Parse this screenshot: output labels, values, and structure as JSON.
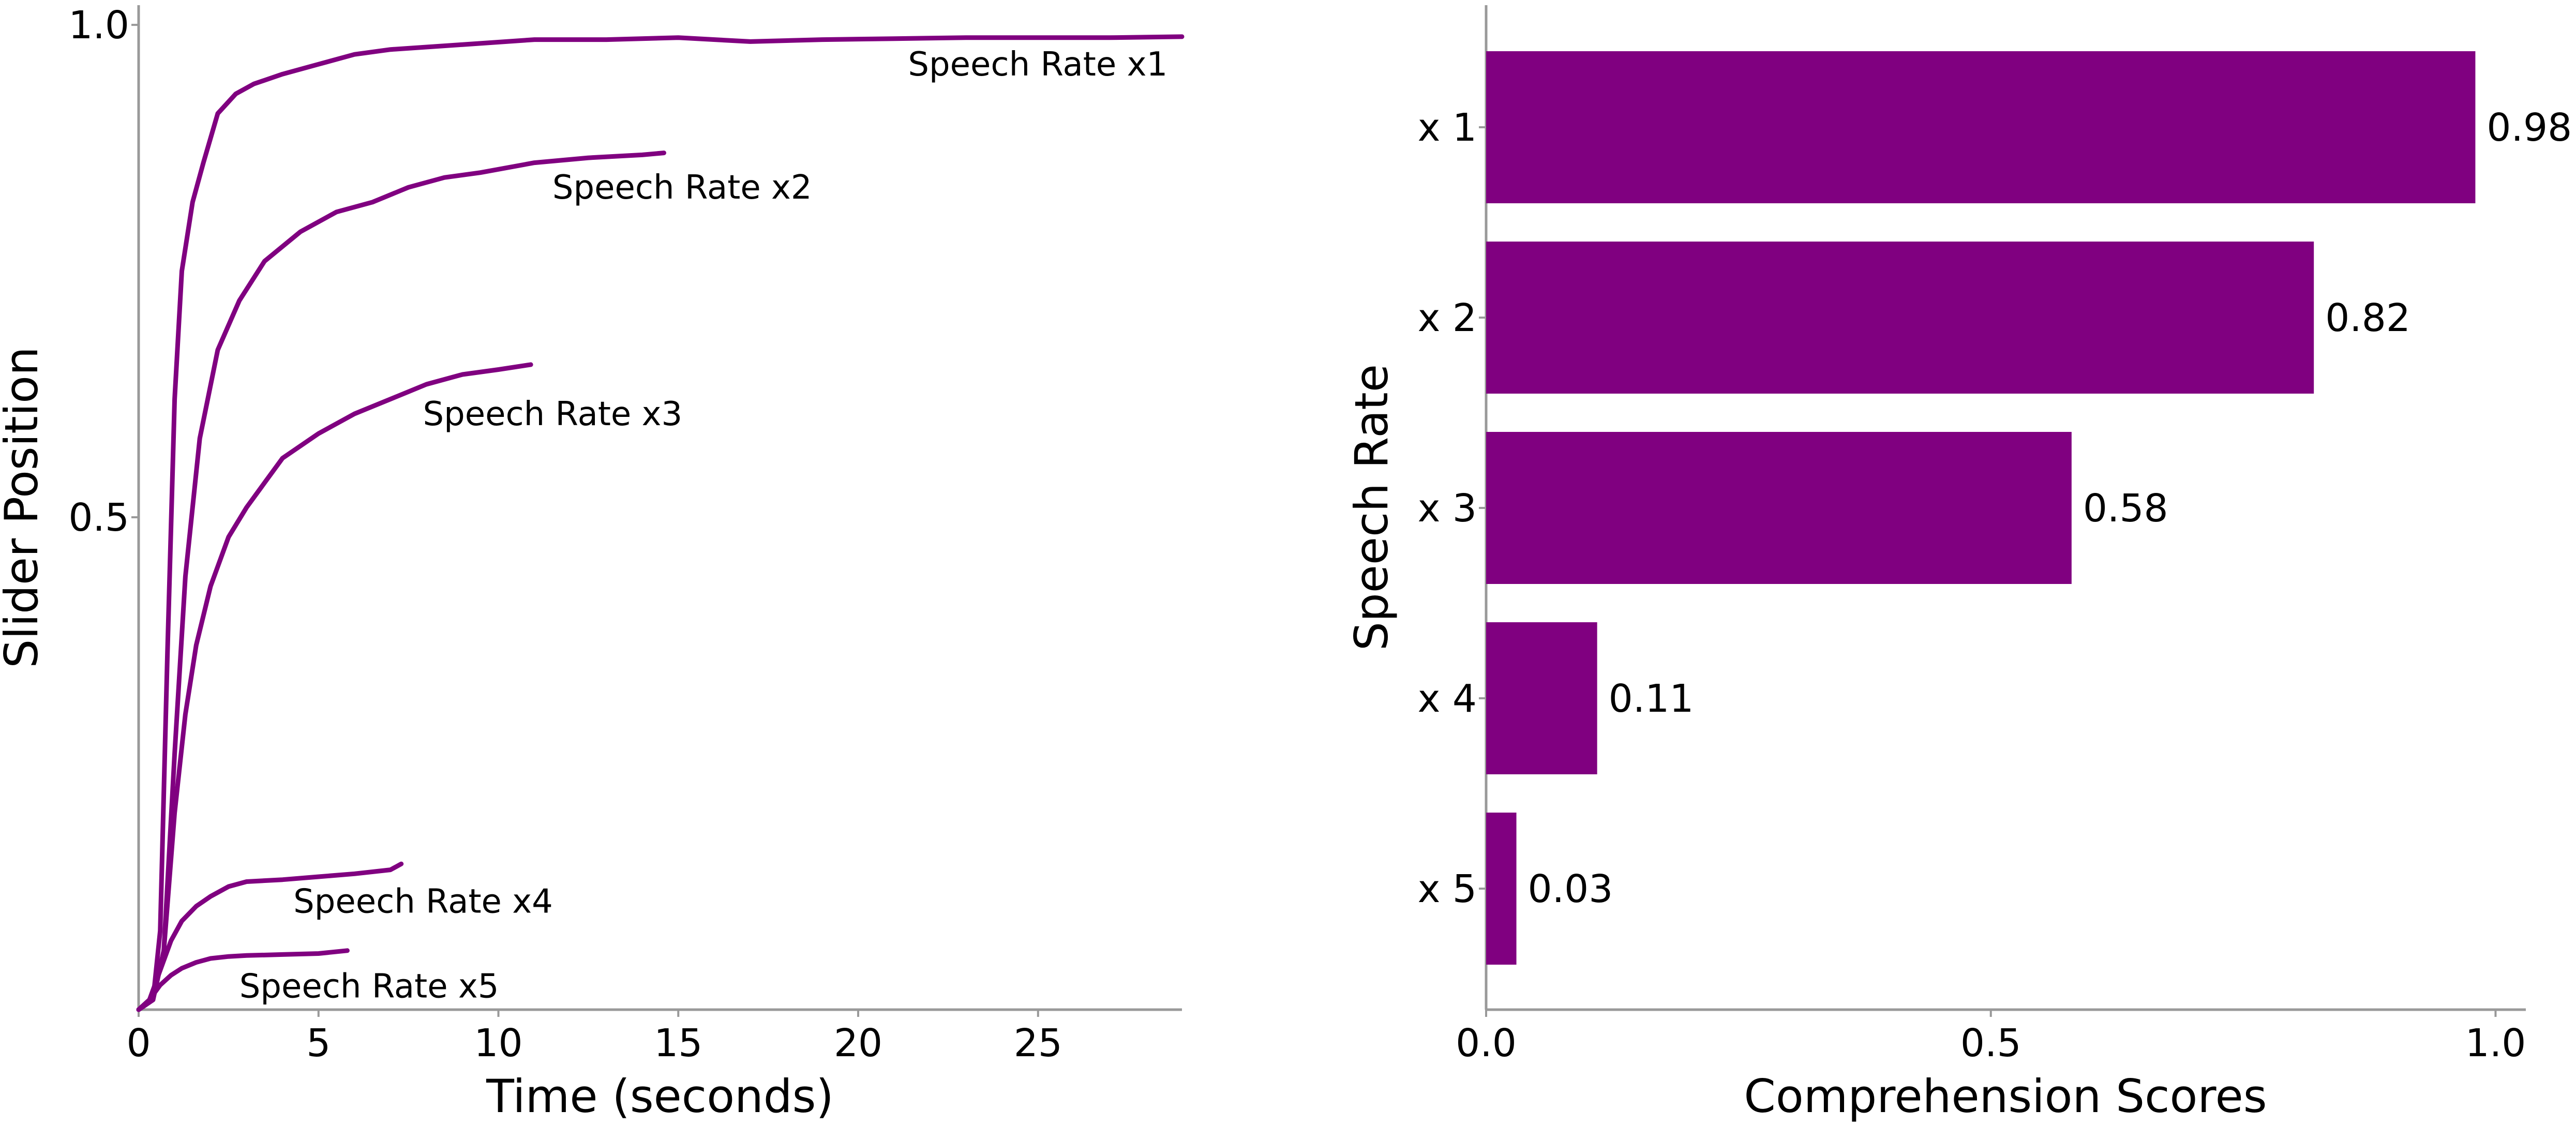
{
  "colors": {
    "series": "#800080",
    "axis": "#999999",
    "text": "#000000"
  },
  "chart_data": [
    {
      "type": "line",
      "title": "",
      "xlabel": "Time (seconds)",
      "ylabel": "Slider Position",
      "xlim": [
        0,
        29
      ],
      "ylim": [
        0,
        1.02
      ],
      "xticks": [
        0,
        5,
        10,
        15,
        20,
        25
      ],
      "xtick_labels": [
        "0",
        "5",
        "10",
        "15",
        "20",
        "25"
      ],
      "yticks": [
        0.5,
        1.0
      ],
      "ytick_labels": [
        "0.5",
        "1.0"
      ],
      "grid": false,
      "series": [
        {
          "name": "Speech Rate x1",
          "x": [
            0,
            0.4,
            0.6,
            0.8,
            1.0,
            1.2,
            1.5,
            1.8,
            2.2,
            2.7,
            3.2,
            4,
            5,
            6,
            7,
            9,
            11,
            13,
            15,
            17,
            19,
            21,
            23,
            25,
            27,
            29
          ],
          "y": [
            0,
            0.01,
            0.08,
            0.36,
            0.62,
            0.75,
            0.82,
            0.86,
            0.91,
            0.93,
            0.94,
            0.95,
            0.96,
            0.97,
            0.975,
            0.98,
            0.985,
            0.985,
            0.987,
            0.983,
            0.985,
            0.986,
            0.987,
            0.987,
            0.987,
            0.988
          ]
        },
        {
          "name": "Speech Rate x2",
          "x": [
            0,
            0.4,
            0.7,
            1.0,
            1.3,
            1.7,
            2.2,
            2.8,
            3.5,
            4.5,
            5.5,
            6.5,
            7.5,
            8.5,
            9.5,
            11,
            12.5,
            14,
            14.6
          ],
          "y": [
            0,
            0.01,
            0.06,
            0.26,
            0.44,
            0.58,
            0.67,
            0.72,
            0.76,
            0.79,
            0.81,
            0.82,
            0.835,
            0.845,
            0.85,
            0.86,
            0.865,
            0.868,
            0.87
          ]
        },
        {
          "name": "Speech Rate x3",
          "x": [
            0,
            0.4,
            0.7,
            1.0,
            1.3,
            1.6,
            2.0,
            2.5,
            3.0,
            3.5,
            4.0,
            5.0,
            6.0,
            7.0,
            8.0,
            9.0,
            10.0,
            10.9
          ],
          "y": [
            0,
            0.01,
            0.06,
            0.2,
            0.3,
            0.37,
            0.43,
            0.48,
            0.51,
            0.535,
            0.56,
            0.585,
            0.605,
            0.62,
            0.635,
            0.645,
            0.65,
            0.655
          ]
        },
        {
          "name": "Speech Rate x4",
          "x": [
            0,
            0.3,
            0.6,
            0.9,
            1.2,
            1.6,
            2.0,
            2.5,
            3.0,
            4.0,
            5.0,
            6.0,
            7.0,
            7.3
          ],
          "y": [
            0,
            0.01,
            0.04,
            0.07,
            0.09,
            0.105,
            0.115,
            0.125,
            0.13,
            0.132,
            0.135,
            0.138,
            0.142,
            0.148
          ]
        },
        {
          "name": "Speech Rate x5",
          "x": [
            0,
            0.3,
            0.6,
            0.9,
            1.2,
            1.6,
            2.0,
            2.5,
            3.0,
            4.0,
            5.0,
            5.8
          ],
          "y": [
            0,
            0.01,
            0.025,
            0.035,
            0.042,
            0.048,
            0.052,
            0.054,
            0.055,
            0.056,
            0.057,
            0.06
          ]
        }
      ],
      "annotations": [
        {
          "text": "Speech Rate x1",
          "x": 28.6,
          "y": 0.96,
          "align": "end"
        },
        {
          "text": "Speech Rate x2",
          "x": 11.5,
          "y": 0.835,
          "align": "start"
        },
        {
          "text": "Speech Rate x3",
          "x": 7.9,
          "y": 0.605,
          "align": "start"
        },
        {
          "text": "Speech Rate x4",
          "x": 4.3,
          "y": 0.11,
          "align": "start"
        },
        {
          "text": "Speech Rate x5",
          "x": 2.8,
          "y": 0.024,
          "align": "start"
        }
      ]
    },
    {
      "type": "bar",
      "orientation": "horizontal",
      "title": "",
      "xlabel": "Comprehension Scores",
      "ylabel": "Speech Rate",
      "categories": [
        "x 1",
        "x 2",
        "x 3",
        "x 4",
        "x 5"
      ],
      "values": [
        0.98,
        0.82,
        0.58,
        0.11,
        0.03
      ],
      "value_labels": [
        "0.98",
        "0.82",
        "0.58",
        "0.11",
        "0.03"
      ],
      "xlim": [
        0,
        1.03
      ],
      "xticks": [
        0.0,
        0.5,
        1.0
      ],
      "xtick_labels": [
        "0.0",
        "0.5",
        "1.0"
      ],
      "grid": false,
      "legend": "none"
    }
  ]
}
